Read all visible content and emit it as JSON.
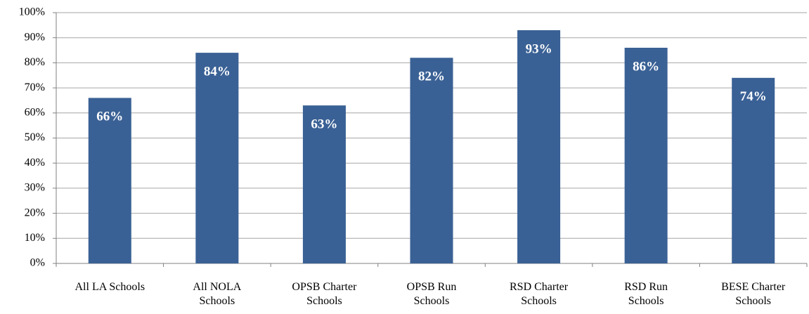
{
  "chart_data": {
    "type": "bar",
    "categories": [
      "All LA Schools",
      "All NOLA\nSchools",
      "OPSB Charter\nSchools",
      "OPSB Run\nSchools",
      "RSD Charter\nSchools",
      "RSD Run\nSchools",
      "BESE Charter\nSchools"
    ],
    "values": [
      66,
      84,
      63,
      82,
      93,
      86,
      74
    ],
    "value_labels": [
      "66%",
      "84%",
      "63%",
      "82%",
      "93%",
      "86%",
      "74%"
    ],
    "color": "#3a6195",
    "ylim": [
      0,
      100
    ],
    "yticks": [
      {
        "value": 0,
        "label": "0%"
      },
      {
        "value": 10,
        "label": "10%"
      },
      {
        "value": 20,
        "label": "20%"
      },
      {
        "value": 30,
        "label": "30%"
      },
      {
        "value": 40,
        "label": "40%"
      },
      {
        "value": 50,
        "label": "50%"
      },
      {
        "value": 60,
        "label": "60%"
      },
      {
        "value": 70,
        "label": "70%"
      },
      {
        "value": 80,
        "label": "80%"
      },
      {
        "value": 90,
        "label": "90%"
      },
      {
        "value": 100,
        "label": "100%"
      }
    ],
    "grid": true
  }
}
